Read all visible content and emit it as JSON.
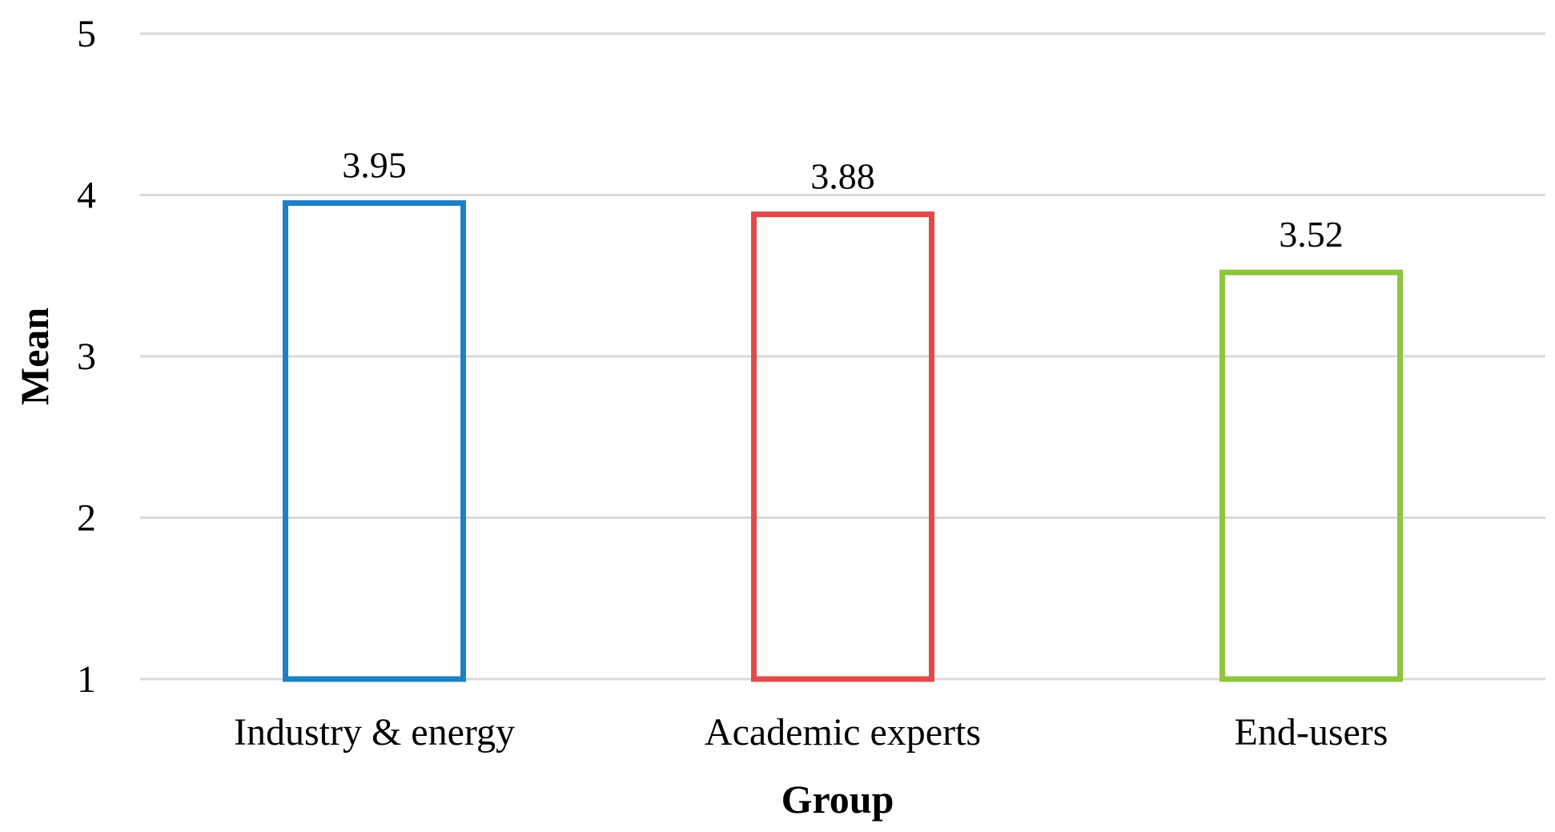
{
  "chart_data": {
    "type": "bar",
    "categories": [
      "Industry & energy",
      "Academic experts",
      "End-users"
    ],
    "values": [
      3.95,
      3.88,
      3.52
    ],
    "data_labels": [
      "3.95",
      "3.88",
      "3.52"
    ],
    "colors": [
      "#1f7fc6",
      "#e04a4a",
      "#8cc63e"
    ],
    "xlabel": "Group",
    "ylabel": "Mean",
    "ylim": [
      1,
      5
    ],
    "yticks": [
      "1",
      "2",
      "3",
      "4",
      "5"
    ],
    "grid": true,
    "fill": "none"
  }
}
